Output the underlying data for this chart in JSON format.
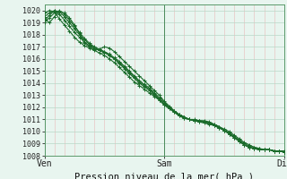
{
  "title": "Pression niveau de la mer( hPa )",
  "bg_color": "#e8f5ef",
  "plot_bg_color": "#e8f5ef",
  "grid_color_v": "#e8b8b8",
  "grid_color_h": "#b8d8c8",
  "line_color": "#1a6b2a",
  "xmin": 0,
  "xmax": 48,
  "ymin": 1008,
  "ymax": 1020.5,
  "yticks": [
    1008,
    1009,
    1010,
    1011,
    1012,
    1013,
    1014,
    1015,
    1016,
    1017,
    1018,
    1019,
    1020
  ],
  "xtick_positions": [
    0,
    24,
    48
  ],
  "xtick_labels": [
    "Ven",
    "Sam",
    "Dim"
  ],
  "series": [
    [
      1019.8,
      1020.0,
      1019.9,
      1019.3,
      1018.8,
      1018.3,
      1017.8,
      1017.4,
      1017.1,
      1016.9,
      1016.7,
      1016.5,
      1016.3,
      1016.0,
      1015.7,
      1015.3,
      1014.9,
      1014.5,
      1014.1,
      1013.8,
      1013.5,
      1013.2,
      1012.9,
      1012.6,
      1012.2,
      1011.9,
      1011.6,
      1011.3,
      1011.1,
      1011.0,
      1010.9,
      1010.9,
      1010.8,
      1010.7,
      1010.6,
      1010.4,
      1010.2,
      1010.0,
      1009.7,
      1009.4,
      1009.1,
      1008.9,
      1008.7,
      1008.6,
      1008.5,
      1008.5,
      1008.4,
      1008.4,
      1008.3
    ],
    [
      1019.5,
      1019.8,
      1020.0,
      1019.7,
      1019.2,
      1018.7,
      1018.2,
      1017.8,
      1017.4,
      1017.1,
      1016.9,
      1016.7,
      1016.6,
      1016.4,
      1016.1,
      1015.8,
      1015.4,
      1015.0,
      1014.6,
      1014.2,
      1013.9,
      1013.6,
      1013.2,
      1012.8,
      1012.4,
      1012.0,
      1011.7,
      1011.4,
      1011.2,
      1011.0,
      1011.0,
      1010.9,
      1010.8,
      1010.7,
      1010.5,
      1010.3,
      1010.1,
      1009.9,
      1009.6,
      1009.3,
      1009.0,
      1008.8,
      1008.7,
      1008.6,
      1008.5,
      1008.5,
      1008.4,
      1008.4,
      1008.4
    ],
    [
      1019.2,
      1019.6,
      1020.0,
      1019.9,
      1019.5,
      1019.0,
      1018.5,
      1018.0,
      1017.6,
      1017.2,
      1016.9,
      1016.7,
      1016.5,
      1016.3,
      1016.0,
      1015.7,
      1015.3,
      1014.9,
      1014.5,
      1014.1,
      1013.8,
      1013.5,
      1013.1,
      1012.7,
      1012.3,
      1012.0,
      1011.7,
      1011.4,
      1011.2,
      1011.0,
      1010.9,
      1010.8,
      1010.8,
      1010.7,
      1010.5,
      1010.3,
      1010.1,
      1009.8,
      1009.5,
      1009.2,
      1008.9,
      1008.7,
      1008.6,
      1008.5,
      1008.5,
      1008.5,
      1008.4,
      1008.4,
      1008.3
    ],
    [
      1019.0,
      1019.4,
      1019.8,
      1020.0,
      1019.7,
      1019.2,
      1018.7,
      1018.2,
      1017.7,
      1017.3,
      1017.0,
      1016.8,
      1016.6,
      1016.3,
      1016.0,
      1015.6,
      1015.2,
      1014.8,
      1014.4,
      1014.0,
      1013.7,
      1013.4,
      1013.0,
      1012.6,
      1012.2,
      1011.9,
      1011.6,
      1011.3,
      1011.1,
      1011.0,
      1010.9,
      1010.8,
      1010.7,
      1010.6,
      1010.5,
      1010.3,
      1010.1,
      1009.8,
      1009.5,
      1009.2,
      1008.9,
      1008.7,
      1008.6,
      1008.5,
      1008.5,
      1008.5,
      1008.4,
      1008.4,
      1008.3
    ],
    [
      1019.3,
      1019.0,
      1019.5,
      1019.9,
      1019.8,
      1019.4,
      1018.8,
      1018.1,
      1017.3,
      1017.0,
      1016.8,
      1016.8,
      1017.0,
      1016.9,
      1016.6,
      1016.2,
      1015.8,
      1015.4,
      1015.0,
      1014.6,
      1014.2,
      1013.8,
      1013.4,
      1013.0,
      1012.5,
      1012.1,
      1011.7,
      1011.4,
      1011.2,
      1011.0,
      1010.9,
      1010.9,
      1010.9,
      1010.8,
      1010.6,
      1010.4,
      1010.1,
      1009.8,
      1009.5,
      1009.2,
      1008.9,
      1008.7,
      1008.6,
      1008.5,
      1008.5,
      1008.5,
      1008.4,
      1008.4,
      1008.3
    ]
  ]
}
